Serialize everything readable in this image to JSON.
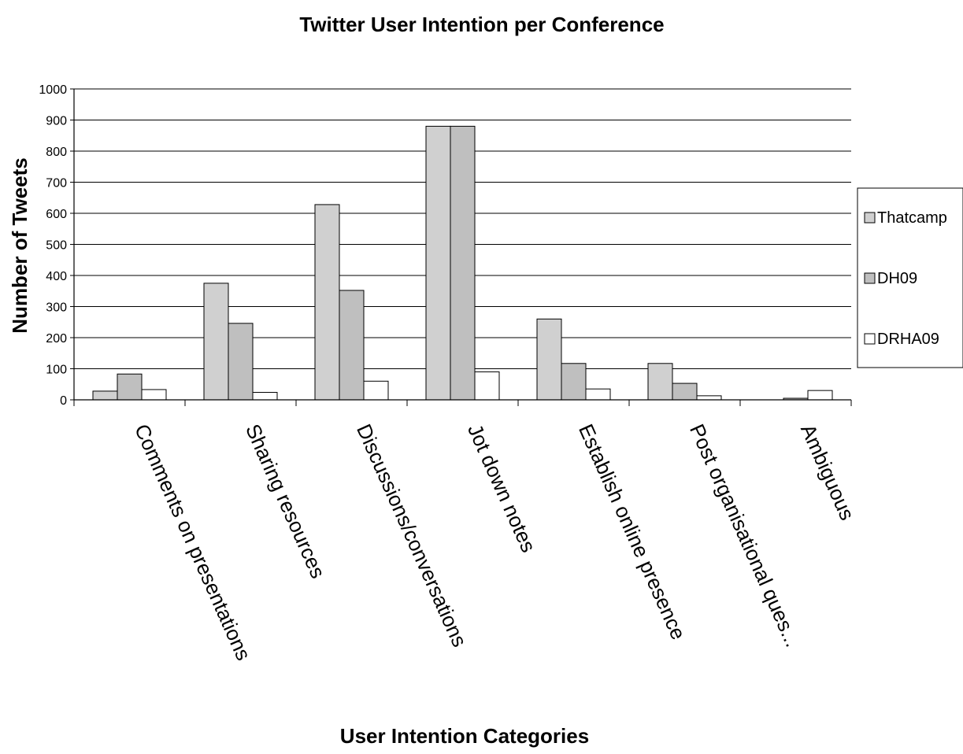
{
  "chart_data": {
    "type": "bar",
    "title": "Twitter User Intention per Conference",
    "xlabel": "User Intention Categories",
    "ylabel": "Number of Tweets",
    "ylim": [
      0,
      1000
    ],
    "ytick_step": 100,
    "grid": "horizontal",
    "legend_position": "right",
    "categories": [
      "Comments on presentations",
      "Sharing resources",
      "Discussions/conversations",
      "Jot down notes",
      "Establish online presence",
      "Post organisational ques...",
      "Ambiguous"
    ],
    "series": [
      {
        "name": "Thatcamp",
        "color": "#d0d0d0",
        "values": [
          28,
          375,
          628,
          880,
          260,
          117,
          0
        ]
      },
      {
        "name": "DH09",
        "color": "#bfbfbf",
        "values": [
          83,
          246,
          352,
          880,
          117,
          53,
          5
        ]
      },
      {
        "name": "DRHA09",
        "color": "#ffffff",
        "values": [
          33,
          24,
          60,
          90,
          35,
          13,
          30
        ]
      }
    ]
  }
}
